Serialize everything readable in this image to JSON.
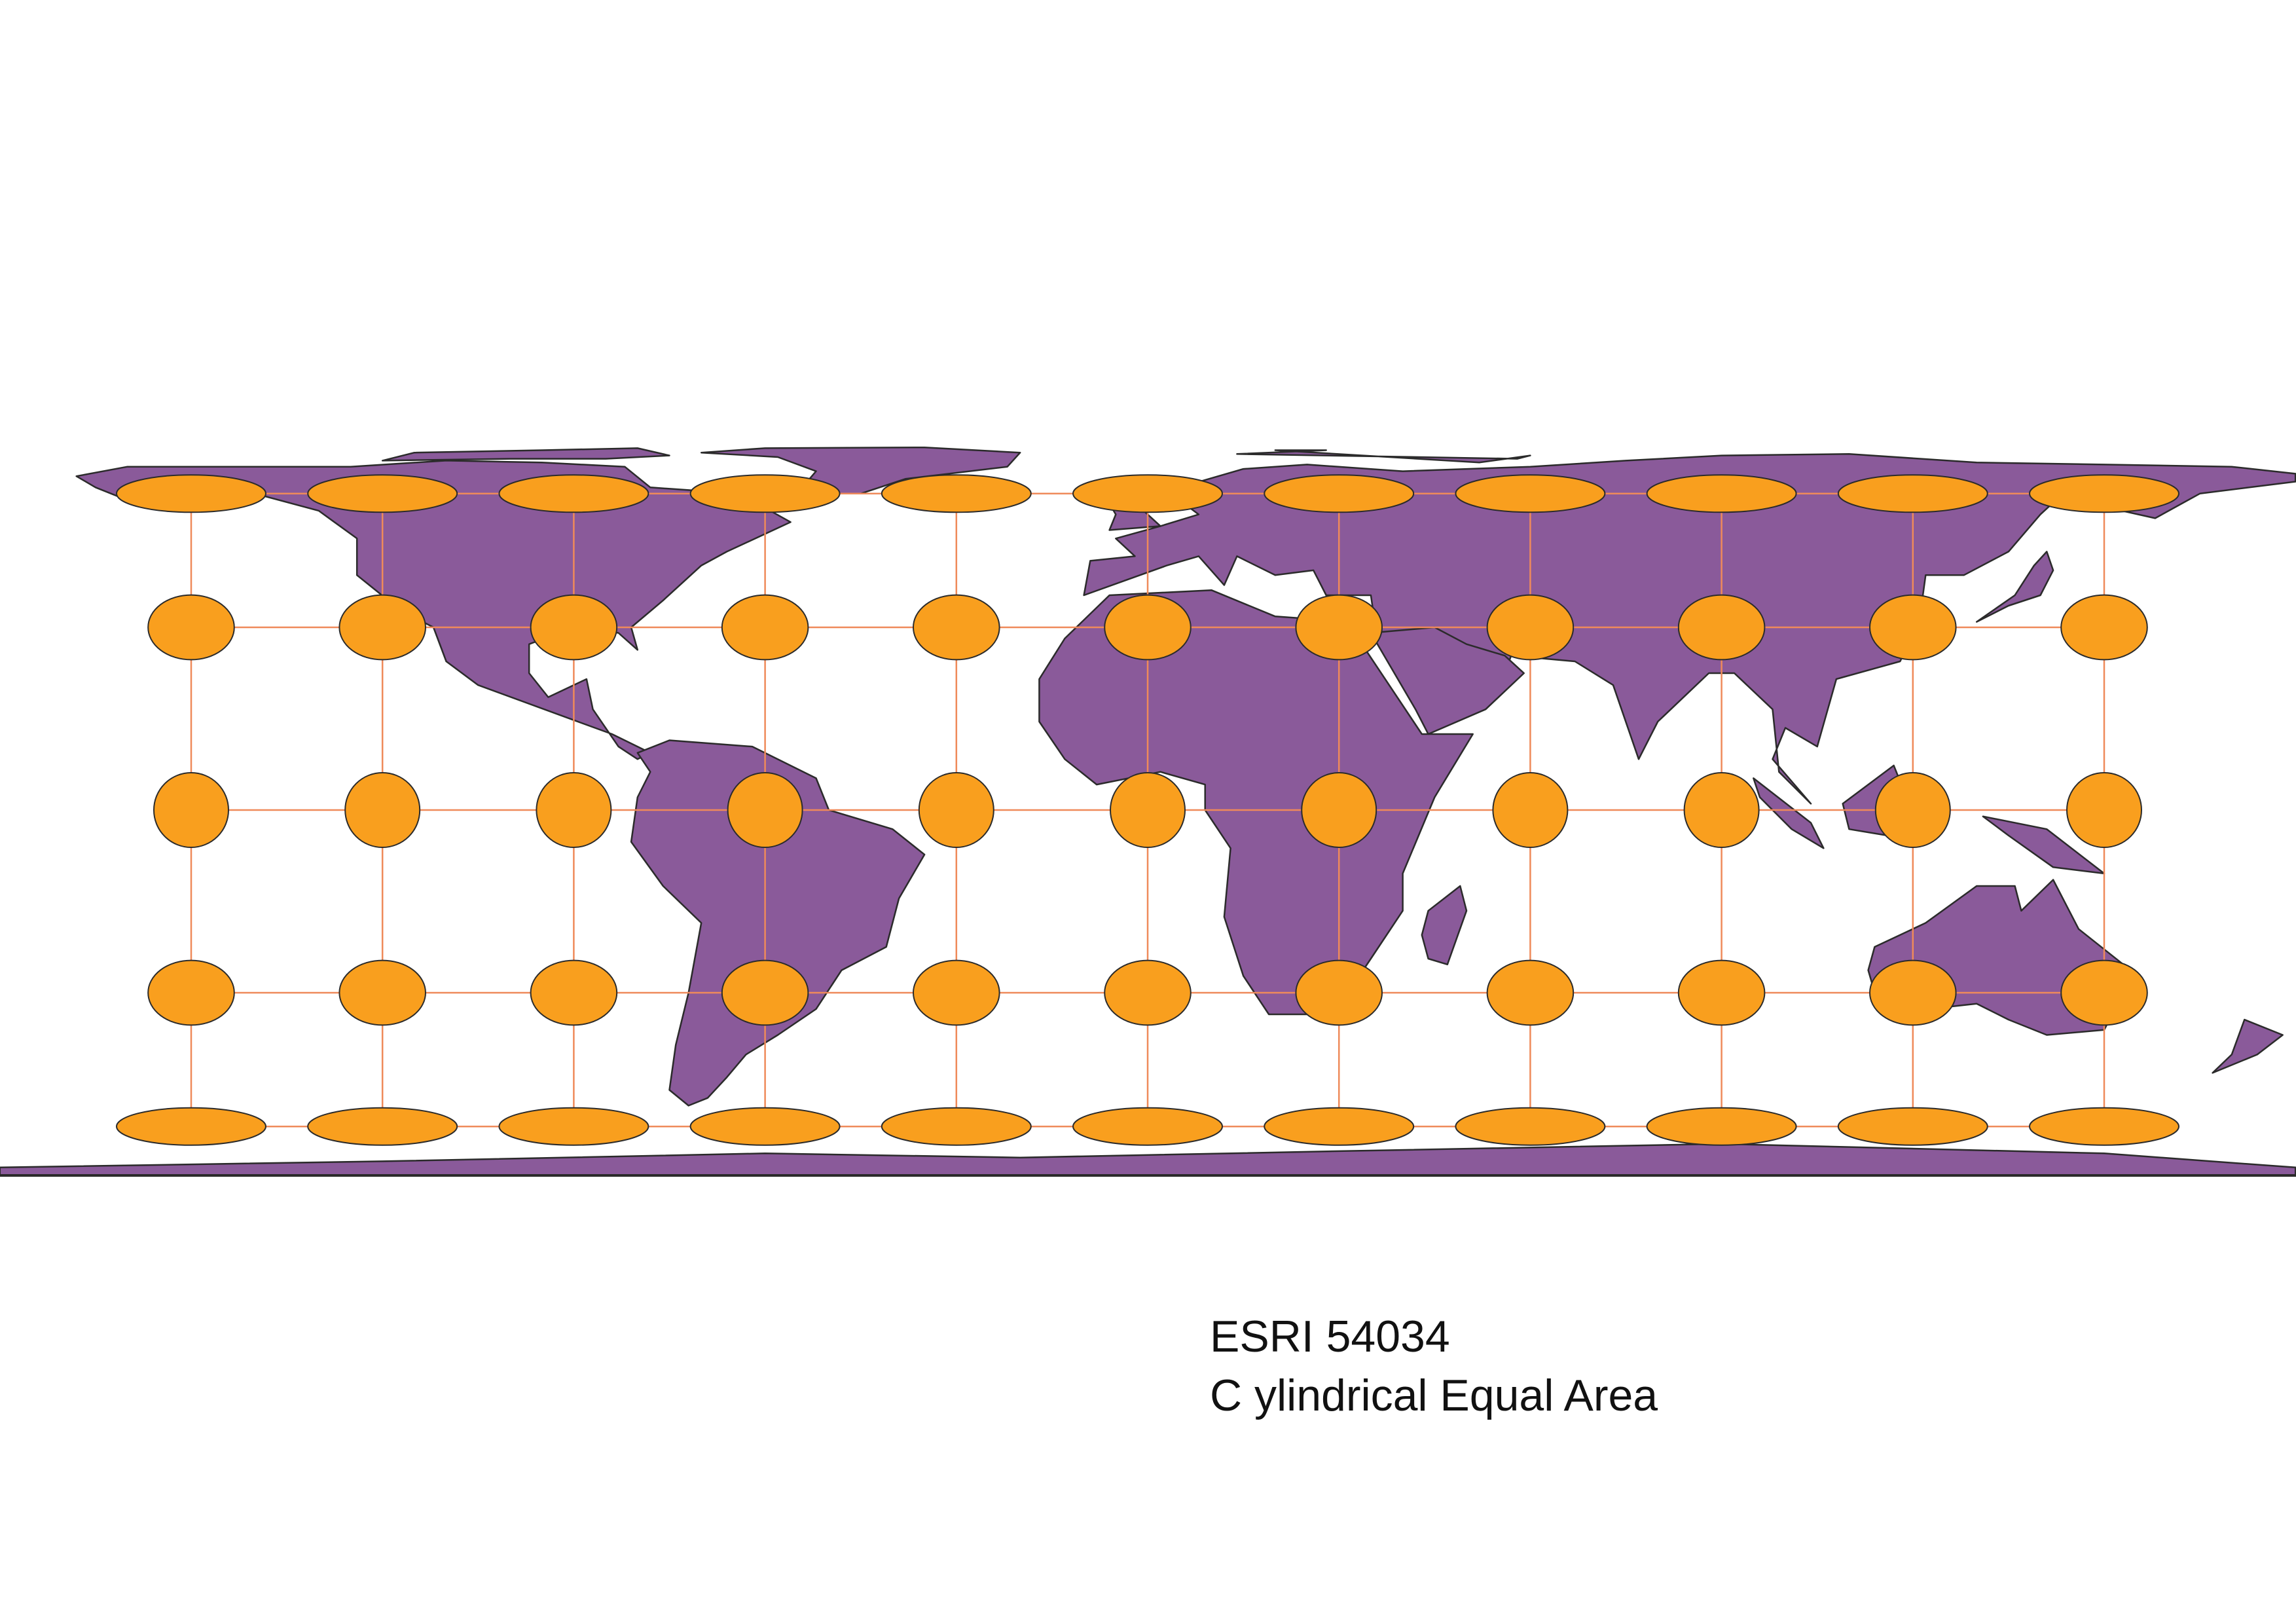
{
  "caption": {
    "code": "ESRI 54034",
    "projection_name": "C ylindrical Equal Area"
  },
  "colors": {
    "land": "#8a5a9a",
    "land_outline": "#2b2b2b",
    "indicatrix_fill": "#f99f1e",
    "indicatrix_outline": "#2b2b2b",
    "graticule": "#ef8a5a",
    "background": "#ffffff"
  },
  "map": {
    "projection": "Cylindrical Equal Area",
    "graticule_longitudes": [
      -150,
      -120,
      -90,
      -60,
      -30,
      0,
      30,
      60,
      90,
      120,
      150
    ],
    "graticule_latitudes": [
      -60,
      -30,
      0,
      30,
      60
    ],
    "tissot_indicatrices": "orange ellipses at every graticule intersection"
  }
}
